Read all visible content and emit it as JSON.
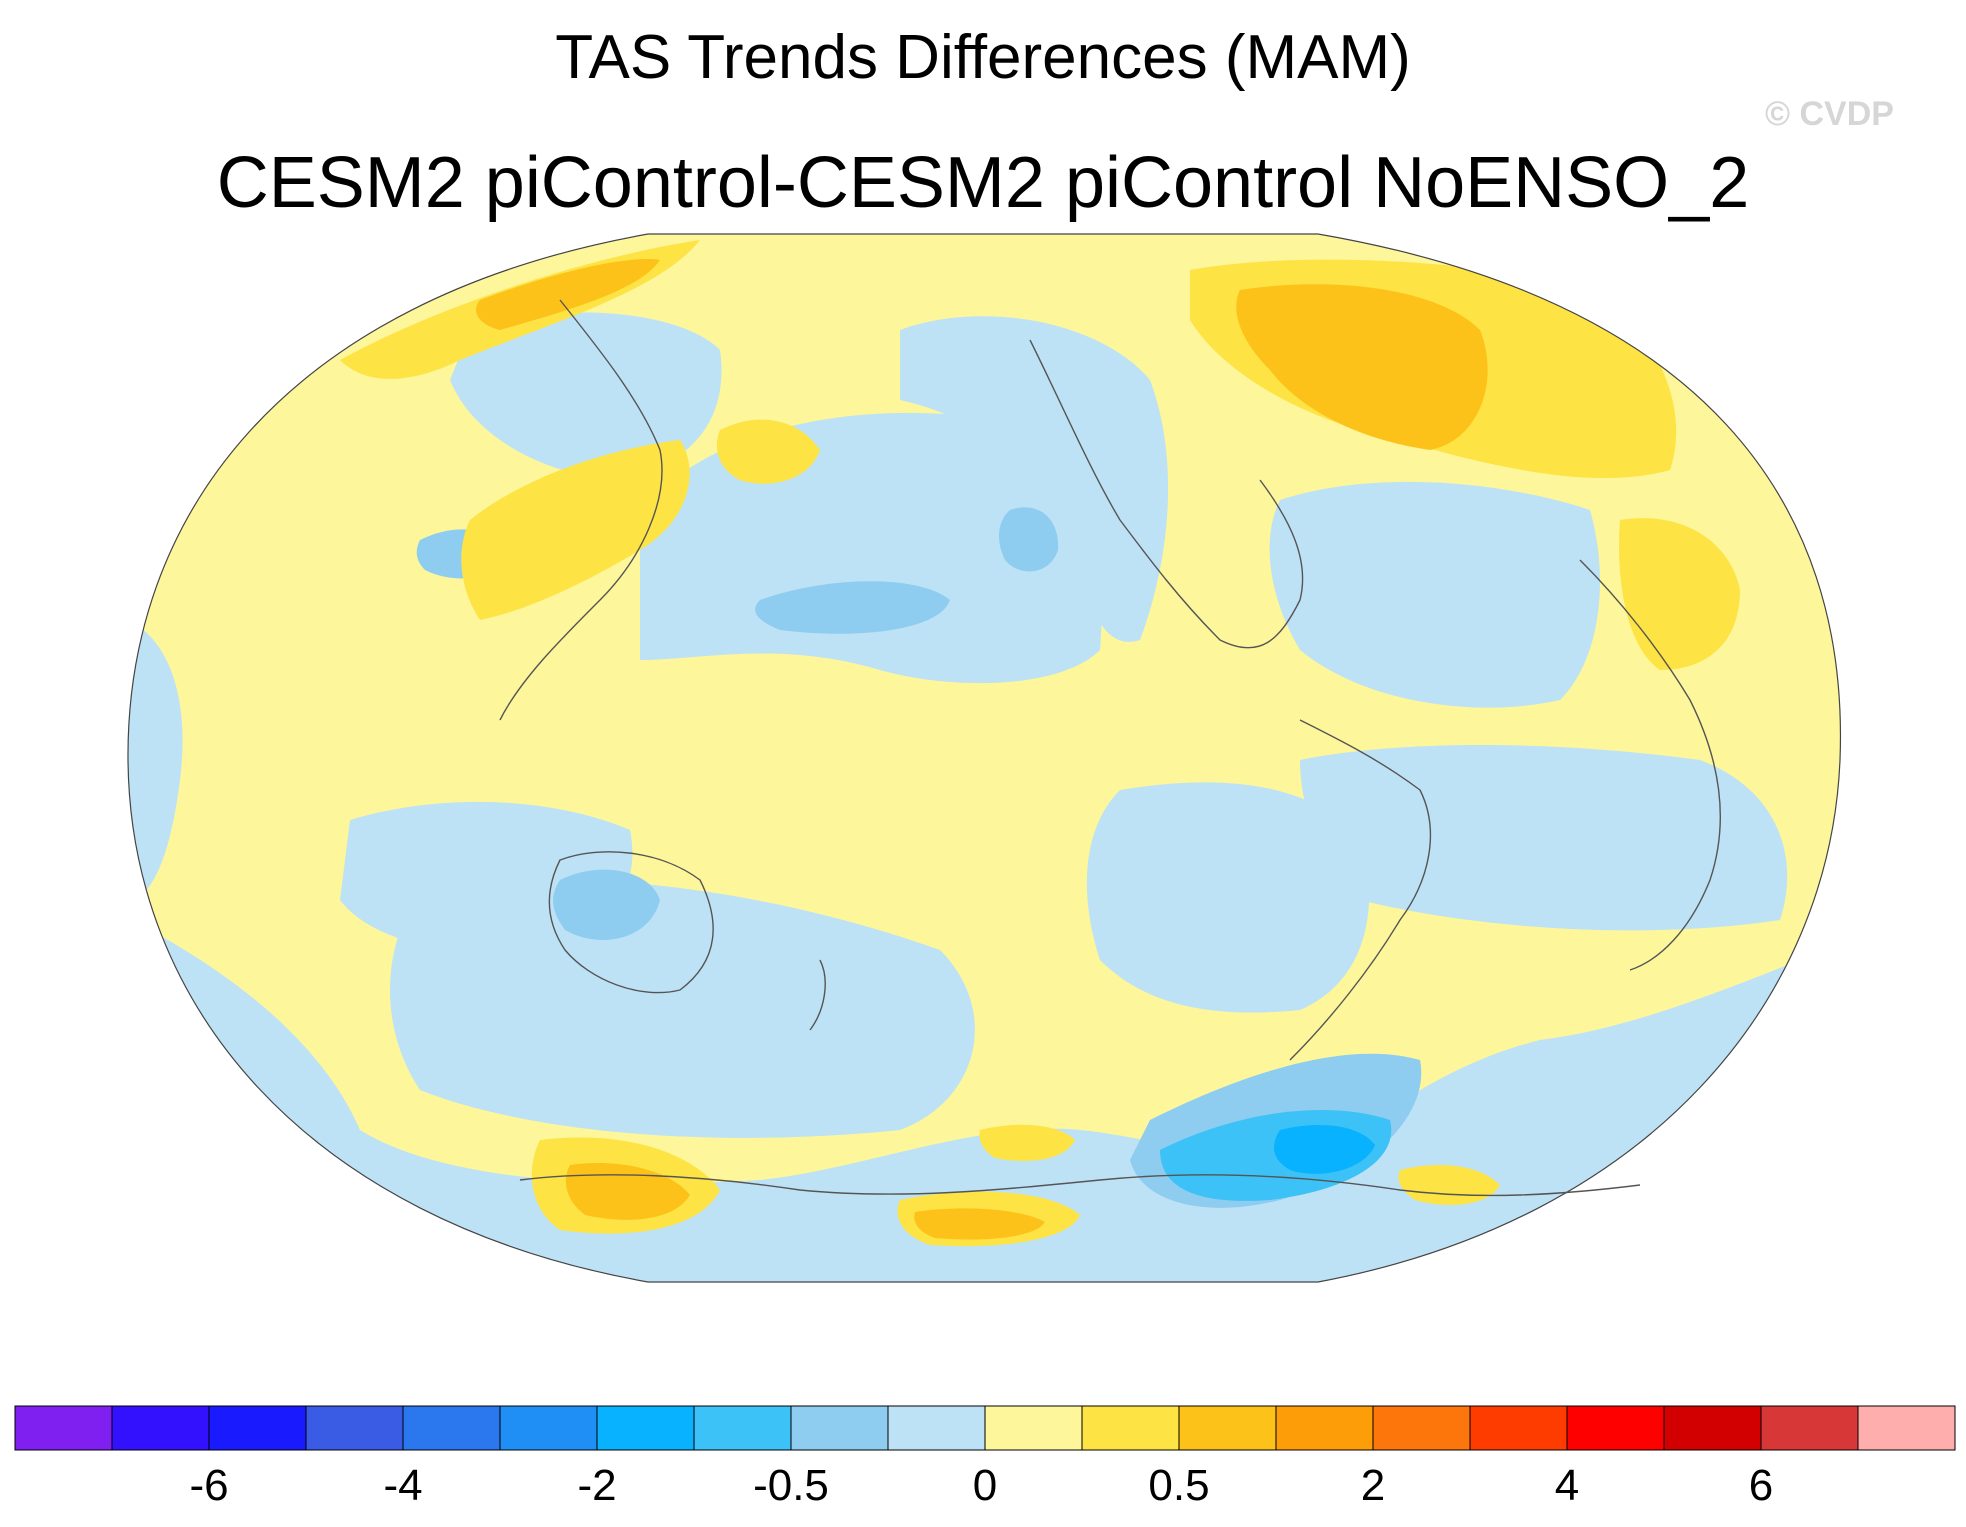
{
  "titles": {
    "main": "TAS Trends Differences (MAM)",
    "sub": "CESM2 piControl-CESM2 piControl NoENSO_2",
    "watermark": "© CVDP"
  },
  "colorbar": {
    "colors": [
      "#7f1ff0",
      "#3311ff",
      "#1a1aff",
      "#3a5be3",
      "#2b77ee",
      "#1f8ff5",
      "#08b2ff",
      "#3cc2f7",
      "#8ecdf0",
      "#bde2f6",
      "#fdf69b",
      "#fde344",
      "#fdc219",
      "#fd9e09",
      "#fd760c",
      "#ff3c00",
      "#ff0000",
      "#d20000",
      "#d83737",
      "#ffaeae"
    ],
    "tick_labels": [
      "-6",
      "-4",
      "-2",
      "-0.5",
      "0",
      "0.5",
      "2",
      "4",
      "6"
    ]
  },
  "map": {
    "projection": "Robinson",
    "center_longitude": 180,
    "background_color": "#fdf69b",
    "feature_colors": {
      "light_blue": "#bde2f6",
      "mid_blue": "#8ecdf0",
      "blue": "#3cc2f7",
      "deep_blue": "#08b2ff",
      "yellow": "#fde344",
      "orange": "#fdc219",
      "dark_orange": "#fd9e09"
    }
  }
}
